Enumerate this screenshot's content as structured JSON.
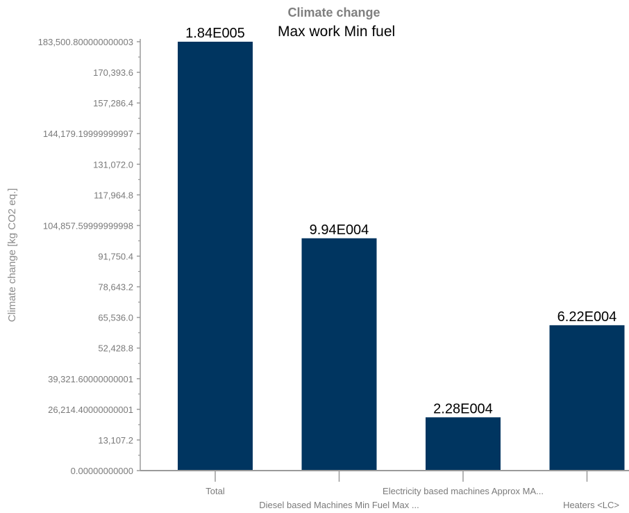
{
  "chart_data": {
    "type": "bar",
    "title": "Climate change",
    "subtitle": "Max work Min fuel",
    "ylabel": "Climate change [kg CO2 eq.]",
    "xlabel": "",
    "ylim": [
      0,
      183500.80000000002
    ],
    "yticks": [
      {
        "value": 183500.8,
        "label": "183,500.800000000003"
      },
      {
        "value": 170393.6,
        "label": "170,393.6"
      },
      {
        "value": 157286.4,
        "label": "157,286.4"
      },
      {
        "value": 144179.2,
        "label": "144,179.19999999997"
      },
      {
        "value": 131072.0,
        "label": "131,072.0"
      },
      {
        "value": 117964.8,
        "label": "117,964.8"
      },
      {
        "value": 104857.6,
        "label": "104,857.59999999998"
      },
      {
        "value": 91750.4,
        "label": "91,750.4"
      },
      {
        "value": 78643.2,
        "label": "78,643.2"
      },
      {
        "value": 65536.0,
        "label": "65,536.0"
      },
      {
        "value": 52428.8,
        "label": "52,428.8"
      },
      {
        "value": 39321.6,
        "label": "39,321.60000000001"
      },
      {
        "value": 26214.4,
        "label": "26,214.40000000001"
      },
      {
        "value": 13107.2,
        "label": "13,107.2"
      },
      {
        "value": 0,
        "label": "0.00000000000"
      }
    ],
    "categories": [
      "Total",
      "Diesel based Machines Min Fuel Max ...",
      "Electricity based machines Approx MA...",
      "Heaters <LC>"
    ],
    "values": [
      184000,
      99400,
      22800,
      62200
    ],
    "data_labels": [
      "1.84E005",
      "9.94E004",
      "2.28E004",
      "6.22E004"
    ],
    "bar_color": "#003560",
    "grid": false,
    "legend": "none"
  }
}
